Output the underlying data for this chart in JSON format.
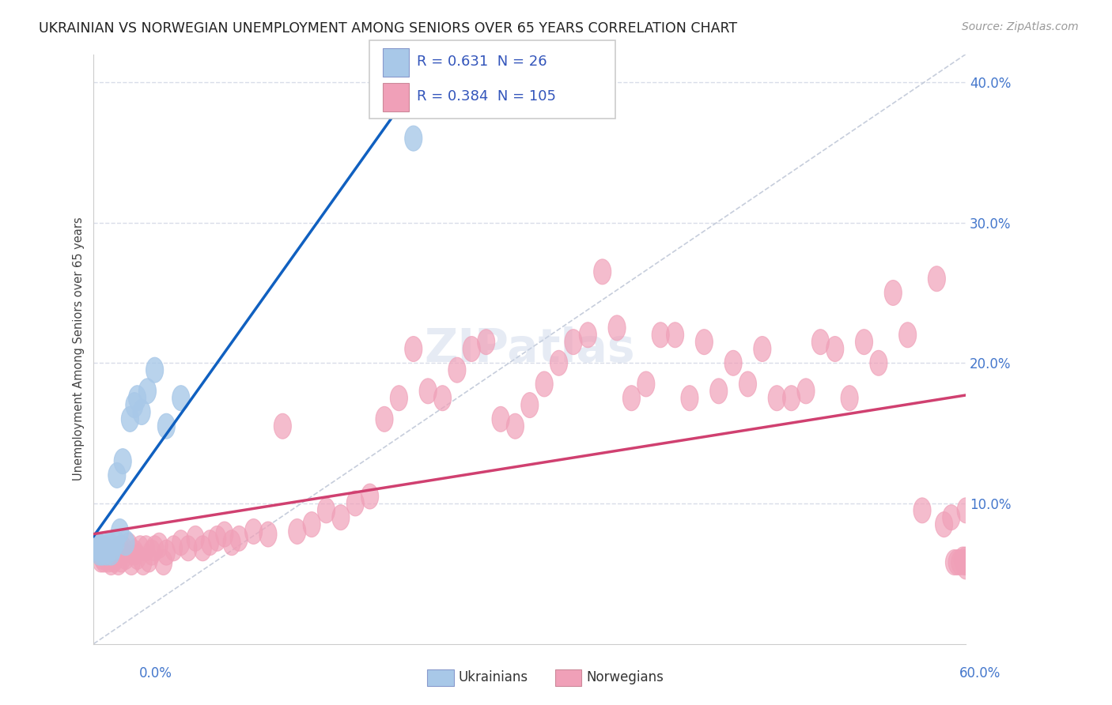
{
  "title": "UKRAINIAN VS NORWEGIAN UNEMPLOYMENT AMONG SENIORS OVER 65 YEARS CORRELATION CHART",
  "source": "Source: ZipAtlas.com",
  "ylabel": "Unemployment Among Seniors over 65 years",
  "legend_label1": "Ukrainians",
  "legend_label2": "Norwegians",
  "R1": "0.631",
  "N1": "26",
  "R2": "0.384",
  "N2": "105",
  "color_ukrainian": "#a8c8e8",
  "color_norwegian": "#f0a0b8",
  "color_trend_ukrainian": "#1060c0",
  "color_trend_norwegian": "#d04070",
  "color_diagonal": "#c0c8d8",
  "background_color": "#ffffff",
  "grid_color": "#d8dce8",
  "xlim": [
    0.0,
    0.6
  ],
  "ylim": [
    0.0,
    0.42
  ],
  "yticks": [
    0.1,
    0.2,
    0.3,
    0.4
  ],
  "ytick_labels": [
    "10.0%",
    "20.0%",
    "30.0%",
    "40.0%"
  ],
  "ukrainians_x": [
    0.002,
    0.003,
    0.004,
    0.005,
    0.006,
    0.007,
    0.008,
    0.009,
    0.01,
    0.011,
    0.012,
    0.013,
    0.015,
    0.016,
    0.018,
    0.02,
    0.022,
    0.025,
    0.028,
    0.03,
    0.033,
    0.037,
    0.042,
    0.05,
    0.06,
    0.22
  ],
  "ukrainians_y": [
    0.068,
    0.07,
    0.065,
    0.068,
    0.065,
    0.07,
    0.068,
    0.065,
    0.068,
    0.07,
    0.065,
    0.068,
    0.072,
    0.12,
    0.08,
    0.13,
    0.072,
    0.16,
    0.17,
    0.175,
    0.165,
    0.18,
    0.195,
    0.155,
    0.175,
    0.36
  ],
  "norwegians_x": [
    0.002,
    0.003,
    0.004,
    0.005,
    0.005,
    0.006,
    0.007,
    0.007,
    0.008,
    0.009,
    0.01,
    0.01,
    0.011,
    0.012,
    0.013,
    0.014,
    0.015,
    0.016,
    0.017,
    0.018,
    0.019,
    0.02,
    0.022,
    0.024,
    0.026,
    0.028,
    0.03,
    0.032,
    0.034,
    0.036,
    0.038,
    0.04,
    0.042,
    0.045,
    0.048,
    0.05,
    0.055,
    0.06,
    0.065,
    0.07,
    0.075,
    0.08,
    0.085,
    0.09,
    0.095,
    0.1,
    0.11,
    0.12,
    0.13,
    0.14,
    0.15,
    0.16,
    0.17,
    0.18,
    0.19,
    0.2,
    0.21,
    0.22,
    0.23,
    0.24,
    0.25,
    0.26,
    0.27,
    0.28,
    0.29,
    0.3,
    0.31,
    0.32,
    0.33,
    0.34,
    0.35,
    0.36,
    0.37,
    0.38,
    0.39,
    0.4,
    0.41,
    0.42,
    0.43,
    0.44,
    0.45,
    0.46,
    0.47,
    0.48,
    0.49,
    0.5,
    0.51,
    0.52,
    0.53,
    0.54,
    0.55,
    0.56,
    0.57,
    0.58,
    0.585,
    0.59,
    0.592,
    0.594,
    0.596,
    0.598,
    0.599,
    0.6,
    0.6,
    0.6,
    0.6
  ],
  "norwegians_y": [
    0.068,
    0.07,
    0.065,
    0.06,
    0.065,
    0.062,
    0.068,
    0.06,
    0.065,
    0.062,
    0.06,
    0.065,
    0.062,
    0.058,
    0.065,
    0.06,
    0.062,
    0.065,
    0.058,
    0.068,
    0.06,
    0.068,
    0.062,
    0.07,
    0.058,
    0.065,
    0.062,
    0.068,
    0.058,
    0.068,
    0.06,
    0.065,
    0.068,
    0.07,
    0.058,
    0.065,
    0.068,
    0.072,
    0.068,
    0.075,
    0.068,
    0.072,
    0.075,
    0.078,
    0.072,
    0.075,
    0.08,
    0.078,
    0.155,
    0.08,
    0.085,
    0.095,
    0.09,
    0.1,
    0.105,
    0.16,
    0.175,
    0.21,
    0.18,
    0.175,
    0.195,
    0.21,
    0.215,
    0.16,
    0.155,
    0.17,
    0.185,
    0.2,
    0.215,
    0.22,
    0.265,
    0.225,
    0.175,
    0.185,
    0.22,
    0.22,
    0.175,
    0.215,
    0.18,
    0.2,
    0.185,
    0.21,
    0.175,
    0.175,
    0.18,
    0.215,
    0.21,
    0.175,
    0.215,
    0.2,
    0.25,
    0.22,
    0.095,
    0.26,
    0.085,
    0.09,
    0.058,
    0.058,
    0.058,
    0.06,
    0.058,
    0.095,
    0.06,
    0.058,
    0.055
  ]
}
